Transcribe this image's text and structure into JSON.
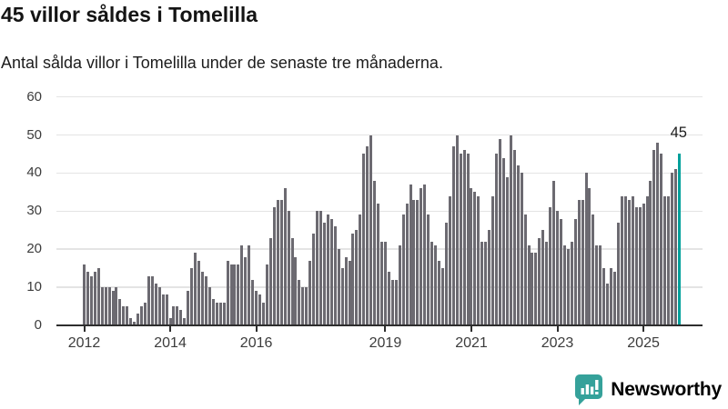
{
  "header": {
    "title": "45 villor såldes i Tomelilla",
    "subtitle": "Antal sålda villor i Tomelilla under de senaste tre månaderna."
  },
  "chart_data": {
    "type": "bar",
    "title": "45 villor såldes i Tomelilla",
    "subtitle": "Antal sålda villor i Tomelilla under de senaste tre månaderna.",
    "x_unit": "month",
    "start_month": "2012-01",
    "end_month": "2025-11",
    "values": [
      16,
      14,
      13,
      14,
      15,
      10,
      10,
      10,
      9,
      10,
      7,
      5,
      5,
      2,
      1,
      3,
      5,
      6,
      13,
      13,
      11,
      10,
      8,
      8,
      2,
      5,
      5,
      4,
      2,
      9,
      15,
      19,
      17,
      14,
      13,
      10,
      7,
      6,
      6,
      6,
      17,
      16,
      16,
      16,
      21,
      18,
      21,
      12,
      9,
      8,
      6,
      16,
      23,
      31,
      33,
      33,
      36,
      30,
      23,
      18,
      12,
      10,
      10,
      17,
      24,
      30,
      30,
      27,
      29,
      28,
      26,
      20,
      15,
      18,
      17,
      24,
      25,
      29,
      45,
      47,
      50,
      38,
      32,
      22,
      22,
      14,
      12,
      12,
      21,
      29,
      32,
      37,
      33,
      33,
      36,
      37,
      29,
      22,
      21,
      17,
      15,
      27,
      34,
      47,
      50,
      45,
      46,
      45,
      36,
      35,
      34,
      22,
      22,
      25,
      34,
      45,
      49,
      44,
      39,
      50,
      46,
      42,
      40,
      29,
      21,
      19,
      19,
      23,
      25,
      22,
      31,
      38,
      30,
      28,
      21,
      20,
      22,
      28,
      33,
      33,
      40,
      36,
      29,
      21,
      21,
      15,
      11,
      15,
      14,
      27,
      34,
      34,
      33,
      34,
      31,
      31,
      32,
      34,
      38,
      46,
      48,
      45,
      34,
      34,
      40,
      41,
      45
    ],
    "ylim": [
      0,
      60
    ],
    "yticks": [
      0,
      10,
      20,
      30,
      40,
      50,
      60
    ],
    "xticks": [
      {
        "label": "2012",
        "month_index": 0
      },
      {
        "label": "2014",
        "month_index": 24
      },
      {
        "label": "2016",
        "month_index": 48
      },
      {
        "label": "2019",
        "month_index": 84
      },
      {
        "label": "2021",
        "month_index": 108
      },
      {
        "label": "2023",
        "month_index": 132
      },
      {
        "label": "2025",
        "month_index": 156
      }
    ],
    "grid": true,
    "legend": false,
    "bar_color": "#6c6a71",
    "highlight": {
      "position": "last",
      "value": 45,
      "label": "45",
      "color": "#00a09b"
    }
  },
  "footer": {
    "brand": "Newsworthy",
    "brand_color": "#35a19a",
    "logo_icon": "bar-chart-speech-bubble-icon"
  }
}
